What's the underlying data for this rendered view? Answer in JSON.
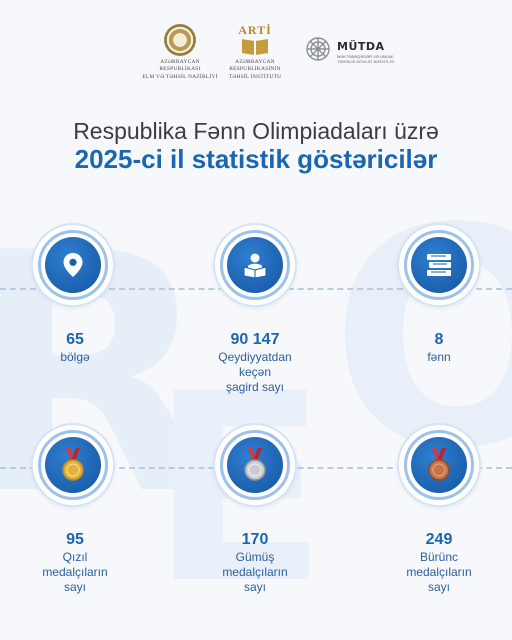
{
  "logos": {
    "ministry": {
      "line1": "AZƏRBAYCAN RESPUBLİKASI",
      "line2": "ELM VƏ TƏHSİL NAZİRLİYİ"
    },
    "arti": {
      "name": "ARTİ",
      "line1": "AZƏRBAYCAN RESPUBLİKASININ",
      "line2": "TƏHSİL İNSTİTUTU"
    },
    "mutda": {
      "name": "MÜTDA",
      "sub": "MƏKTƏBƏQƏDƏR VƏ ÜMUMİ TƏHSİLİN DÖVLƏT AGENTLİYİ"
    }
  },
  "title": {
    "line1": "Respublika Fənn Olimpiadaları üzrə",
    "line2": "2025-ci il statistik göstəricilər"
  },
  "stats": [
    {
      "value": "65",
      "label_lines": [
        "bölgə"
      ],
      "icon": "location-pin-icon"
    },
    {
      "value": "90 147",
      "label_lines": [
        "Qeydiyyatdan",
        "keçən",
        "şagird sayı"
      ],
      "icon": "student-reading-icon"
    },
    {
      "value": "8",
      "label_lines": [
        "fənn"
      ],
      "icon": "books-icon"
    },
    {
      "value": "95",
      "label_lines": [
        "Qızıl",
        "medalçıların",
        "sayı"
      ],
      "icon": "gold-medal-icon"
    },
    {
      "value": "170",
      "label_lines": [
        "Gümüş",
        "medalçıların",
        "sayı"
      ],
      "icon": "silver-medal-icon"
    },
    {
      "value": "249",
      "label_lines": [
        "Bürünc",
        "medalçıların",
        "sayı"
      ],
      "icon": "bronze-medal-icon"
    }
  ],
  "colors": {
    "accent": "#1b66b0",
    "gold": "#e3b23c",
    "silver": "#c9ccd1",
    "bronze": "#c8744a"
  }
}
